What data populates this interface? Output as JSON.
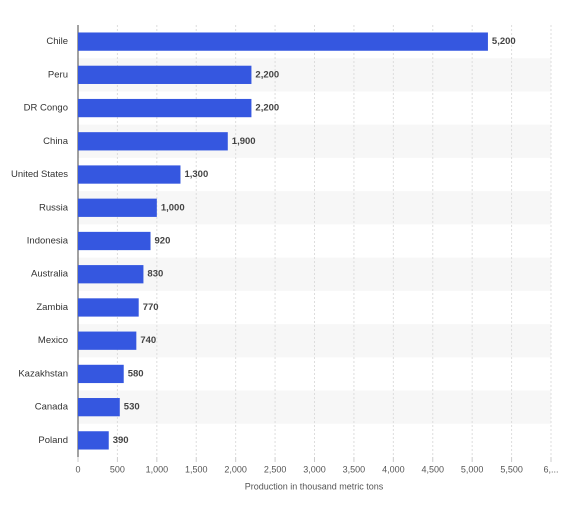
{
  "chart_data": {
    "type": "hbar",
    "xlabel": "Production in thousand metric tons",
    "categories": [
      "Chile",
      "Peru",
      "DR Congo",
      "China",
      "United States",
      "Russia",
      "Indonesia",
      "Australia",
      "Zambia",
      "Mexico",
      "Kazakhstan",
      "Canada",
      "Poland"
    ],
    "values": [
      5200,
      2200,
      2200,
      1900,
      1300,
      1000,
      920,
      830,
      770,
      740,
      580,
      530,
      390
    ],
    "value_labels": [
      "5,200",
      "2,200",
      "2,200",
      "1,900",
      "1,300",
      "1,000",
      "920",
      "830",
      "770",
      "740",
      "580",
      "530",
      "390"
    ],
    "color": "#3557e0",
    "xlim": [
      0,
      6000
    ],
    "xticks": [
      0,
      500,
      {
        "value": 1000,
        "label": "1,000"
      },
      {
        "value": 1500,
        "label": "1,500"
      },
      {
        "value": 2000,
        "label": "2,000"
      },
      {
        "value": 2500,
        "label": "2,500"
      },
      {
        "value": 3000,
        "label": "3,000"
      },
      {
        "value": 3500,
        "label": "3,500"
      },
      {
        "value": 4000,
        "label": "4,000"
      },
      {
        "value": 4500,
        "label": "4,500"
      },
      {
        "value": 5000,
        "label": "5,000"
      },
      {
        "value": 5500,
        "label": "5,500"
      },
      {
        "value": 6000,
        "label": "6,..."
      }
    ],
    "grid": true
  }
}
